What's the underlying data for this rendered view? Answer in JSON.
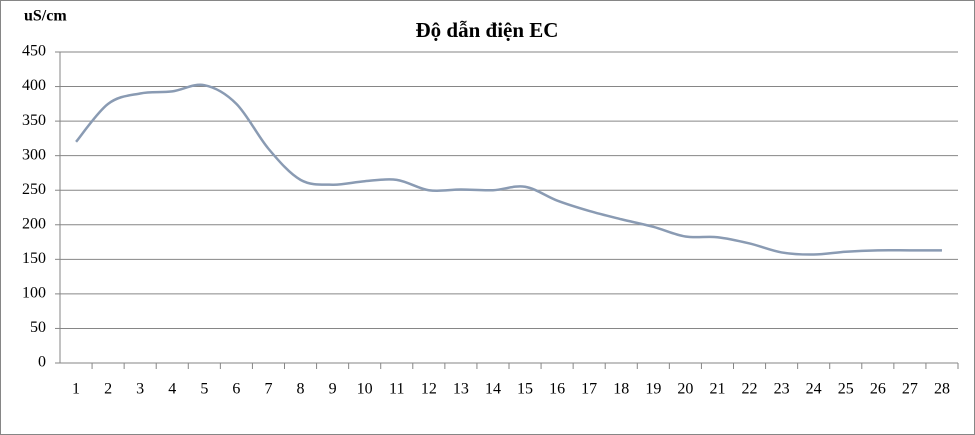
{
  "chart_data": {
    "type": "line",
    "title": "Độ dẫn  điện EC",
    "y_label": "uS/cm",
    "categories": [
      "1",
      "2",
      "3",
      "4",
      "5",
      "6",
      "7",
      "8",
      "9",
      "10",
      "11",
      "12",
      "13",
      "14",
      "15",
      "16",
      "17",
      "18",
      "19",
      "20",
      "21",
      "22",
      "23",
      "24",
      "25",
      "26",
      "27",
      "28"
    ],
    "series": [
      {
        "name": "EC",
        "color": "#8a9bb3",
        "values": [
          320,
          375,
          390,
          393,
          402,
          375,
          310,
          265,
          258,
          263,
          265,
          250,
          251,
          250,
          255,
          235,
          220,
          208,
          197,
          183,
          182,
          173,
          160,
          157,
          161,
          163,
          163,
          163
        ]
      }
    ],
    "ylim": [
      0,
      450
    ],
    "yticks": [
      0,
      50,
      100,
      150,
      200,
      250,
      300,
      350,
      400,
      450
    ],
    "grid": true
  }
}
